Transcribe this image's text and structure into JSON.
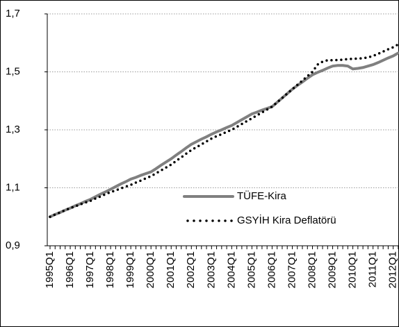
{
  "chart_data": {
    "type": "line",
    "categories": [
      "1995Q1",
      null,
      null,
      null,
      "1996Q1",
      null,
      null,
      null,
      "1997Q1",
      null,
      null,
      null,
      "1998Q1",
      null,
      null,
      null,
      "1999Q1",
      null,
      null,
      null,
      "2000Q1",
      null,
      null,
      null,
      "2001Q1",
      null,
      null,
      null,
      "2002Q1",
      null,
      null,
      null,
      "2003Q1",
      null,
      null,
      null,
      "2004Q1",
      null,
      null,
      null,
      "2005Q1",
      null,
      null,
      null,
      "2006Q1",
      null,
      null,
      null,
      "2007Q1",
      null,
      null,
      null,
      "2008Q1",
      null,
      null,
      null,
      "2009Q1",
      null,
      null,
      null,
      "2010Q1",
      null,
      null,
      null,
      "2011Q1",
      null,
      null,
      null,
      "2012Q1",
      null
    ],
    "series": [
      {
        "name": "TÜFE-Kira",
        "color": "#808080",
        "style": "solid",
        "values": [
          1.0,
          1.008,
          1.015,
          1.023,
          1.03,
          1.038,
          1.045,
          1.053,
          1.06,
          1.069,
          1.078,
          1.086,
          1.095,
          1.104,
          1.113,
          1.121,
          1.13,
          1.136,
          1.143,
          1.149,
          1.155,
          1.166,
          1.178,
          1.189,
          1.2,
          1.213,
          1.225,
          1.238,
          1.25,
          1.259,
          1.268,
          1.276,
          1.285,
          1.293,
          1.3,
          1.308,
          1.315,
          1.325,
          1.335,
          1.345,
          1.355,
          1.361,
          1.368,
          1.374,
          1.38,
          1.395,
          1.41,
          1.425,
          1.44,
          1.453,
          1.465,
          1.478,
          1.49,
          1.498,
          1.505,
          1.513,
          1.52,
          1.522,
          1.522,
          1.52,
          1.51,
          1.512,
          1.515,
          1.52,
          1.525,
          1.532,
          1.54,
          1.548,
          1.555,
          1.565
        ]
      },
      {
        "name": "GSYİH Kira Deflatörü",
        "color": "#000000",
        "style": "dotted",
        "values": [
          1.0,
          1.008,
          1.015,
          1.023,
          1.03,
          1.036,
          1.043,
          1.049,
          1.055,
          1.063,
          1.07,
          1.078,
          1.085,
          1.091,
          1.098,
          1.104,
          1.11,
          1.118,
          1.125,
          1.133,
          1.14,
          1.15,
          1.16,
          1.17,
          1.18,
          1.193,
          1.205,
          1.218,
          1.23,
          1.24,
          1.25,
          1.26,
          1.27,
          1.278,
          1.285,
          1.293,
          1.3,
          1.31,
          1.32,
          1.33,
          1.34,
          1.35,
          1.36,
          1.37,
          1.38,
          1.395,
          1.41,
          1.425,
          1.44,
          1.455,
          1.47,
          1.485,
          1.5,
          1.525,
          1.535,
          1.54,
          1.54,
          1.541,
          1.542,
          1.544,
          1.545,
          1.546,
          1.547,
          1.55,
          1.555,
          1.562,
          1.57,
          1.578,
          1.585,
          1.595
        ]
      }
    ],
    "ylim": [
      0.9,
      1.7
    ],
    "yticks": [
      {
        "value": 0.9,
        "label": "0,9"
      },
      {
        "value": 1.1,
        "label": "1,1"
      },
      {
        "value": 1.3,
        "label": "1,3"
      },
      {
        "value": 1.5,
        "label": "1,5"
      },
      {
        "value": 1.7,
        "label": "1,7"
      }
    ],
    "grid": true,
    "legend": "lower right"
  }
}
